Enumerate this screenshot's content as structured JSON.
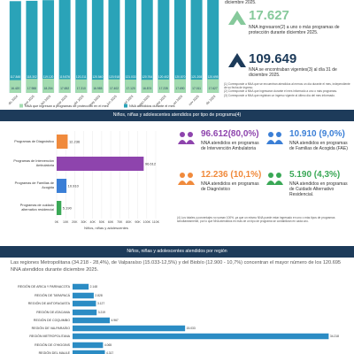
{
  "chart_data": [
    {
      "type": "bar",
      "categories": [
        "dic 2024",
        "ene 2025",
        "feb 2025",
        "mar 2025",
        "abr 2025",
        "may 2025",
        "jun 2025",
        "jul 2025",
        "ago 2025",
        "sep 2025",
        "oct 2025",
        "nov 2025",
        "dic 2025"
      ],
      "series": [
        {
          "name": "NNA atendidos durante el mes",
          "color": "#2aa3b8",
          "values": [
            117845,
            118302,
            119120,
            119876,
            120211,
            120540,
            120918,
            121033,
            120764,
            120402,
            120870,
            121208,
            120695
          ],
          "value_labels": [
            "117.845",
            "118.302",
            "119.120",
            "119.876",
            "120.211",
            "120.540",
            "120.918",
            "121.033",
            "120.764",
            "120.402",
            "120.870",
            "121.208",
            "120.695"
          ]
        },
        {
          "name": "NNA que ingresan a programas de protección en el mes",
          "color": "#a3dbb0",
          "values": [
            16420,
            17988,
            18204,
            17652,
            17310,
            16985,
            17402,
            17120,
            16874,
            17235,
            17690,
            17011,
            17627
          ],
          "value_labels": [
            "16.420",
            "17.988",
            "18.204",
            "17.652",
            "17.310",
            "16.985",
            "17.402",
            "17.120",
            "16.874",
            "17.235",
            "17.690",
            "17.011",
            "17.627"
          ]
        }
      ],
      "ylim": [
        0,
        125000
      ]
    },
    {
      "type": "hbar",
      "categories": [
        "Programas de Diagnóstico",
        "Programas de Intervención Ambulatoria",
        "Programas de Familias de Acogida",
        "Programas de cuidado alternativo residencial"
      ],
      "values": [
        12236,
        96612,
        10910,
        5190
      ],
      "value_labels": [
        "12.236",
        "96.612",
        "10.910",
        "5.190"
      ],
      "colors": [
        "#f08a3c",
        "#8e44ad",
        "#3b7fd6",
        "#3aa856"
      ],
      "xlabel": "Niños, niñas y adolescentes",
      "xlim": [
        0,
        110000
      ],
      "xticks": [
        {
          "value": 0,
          "label": "0K"
        },
        {
          "value": 10000,
          "label": "10K"
        },
        {
          "value": 20000,
          "label": "20K"
        },
        {
          "value": 30000,
          "label": "30K"
        },
        {
          "value": 40000,
          "label": "40K"
        },
        {
          "value": 50000,
          "label": "50K"
        },
        {
          "value": 60000,
          "label": "60K"
        },
        {
          "value": 70000,
          "label": "70K"
        },
        {
          "value": 80000,
          "label": "80K"
        },
        {
          "value": 90000,
          "label": "90K"
        },
        {
          "value": 100000,
          "label": "100K"
        },
        {
          "value": 110000,
          "label": "110K"
        }
      ]
    },
    {
      "type": "hbar",
      "categories": [
        "REGIÓN DE ARICA Y PARINACOTA",
        "REGIÓN DE TARAPACÁ",
        "REGIÓN DE ANTOFAGASTA",
        "REGIÓN DE ATACAMA",
        "REGIÓN DE COQUIMBO",
        "REGIÓN DE VALPARAÍSO",
        "REGIÓN METROPOLITANA",
        "REGIÓN DE O'HIGGINS",
        "REGIÓN DEL MAULE"
      ],
      "values": [
        2148,
        2828,
        3127,
        3219,
        4967,
        15033,
        34218,
        4065,
        4317
      ],
      "value_labels": [
        "2.148",
        "2.828",
        "3.127",
        "3.219",
        "4.967",
        "15.033",
        "34.218",
        "4.065",
        "4.317"
      ],
      "color": "#2b8cc4",
      "xlim": [
        0,
        35000
      ]
    }
  ],
  "top_panel": {
    "lead": "diciembre 2025.",
    "stat1": {
      "value": "17.627",
      "text": "NNA ingresaron(2) a uno o más programas de protección durante diciembre 2025."
    },
    "stat2": {
      "value": "109.649",
      "text": "NNA se encontraban vigentes(3) al día 31 de diciembre 2025."
    },
    "notes": [
      "(1) Corresponde a NNA que se encuentran atendidos al menos un día durante el mes, independiente de su fecha de ingreso.",
      "(2) Corresponde a NNA que ingresaron durante el mes informado a uno o más programas.",
      "(3) Corresponde a NNA que registran un ingreso vigente al último día del mes informado."
    ]
  },
  "section1": {
    "title": "Niños, niñas y adolescentes atendidos por tipo de programa(4)",
    "stats": [
      {
        "value": "96.612(80,0%)",
        "text": "NNA atendidos en programas de Intervención Ambulatoria"
      },
      {
        "value": "10.910 (9,0%)",
        "text": "NNA atendidos en programas de Familias de Acogida (FAE)"
      },
      {
        "value": "12.236 (10,1%)",
        "text": "NNA atendidos en programas de Diagnóstico"
      },
      {
        "value": "5.190 (4,3%)",
        "text": "NNA atendidos en programas de Cuidado Alternativo Residencial."
      }
    ],
    "note": "(4) Los totales y porcentajes no suman 100%, ya que un mismo NNA puede estar ingresado en uno o más tipos de programas simultáneamente, por lo que NNA atendidos en más de un tipo de programa se contabilizan en cada uno."
  },
  "section2": {
    "title": "Niños, niñas y adolescentes atendidos por región",
    "text": "Las regiones Metropolitana (34.218 - 28,4%), de Valparaíso (15.033-12,5%) y del Biobío (12.900 - 10,7%) concentran el mayor número de los 120.695 NNA atendidos durante diciembre 2025."
  }
}
